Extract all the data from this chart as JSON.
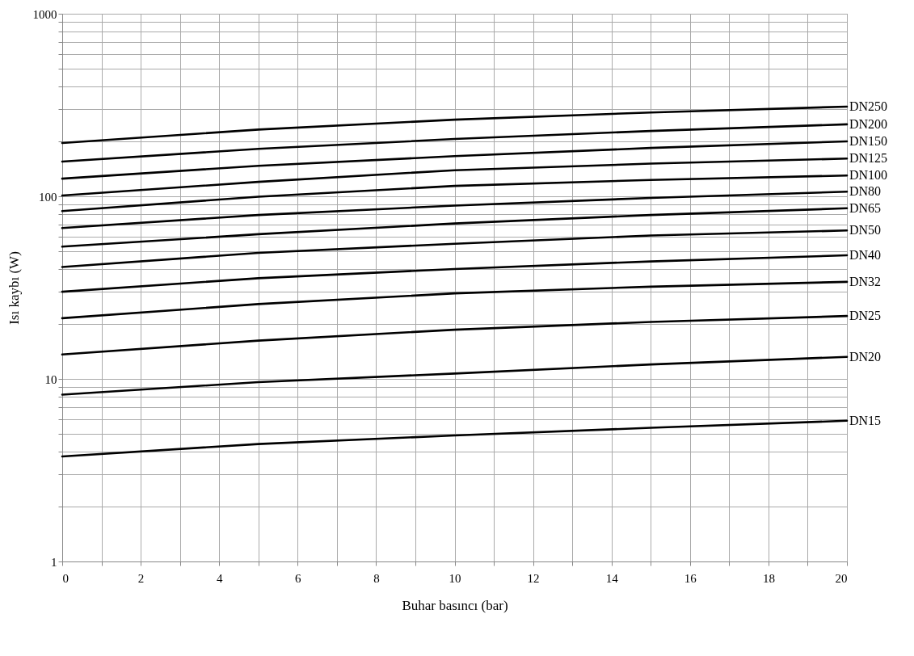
{
  "chart_data": {
    "type": "line",
    "xlabel": "Buhar basıncı (bar)",
    "ylabel": "Isı kaybı (W)",
    "x": [
      0,
      5,
      10,
      15,
      20
    ],
    "series": [
      {
        "name": "DN250",
        "color": "#000000",
        "values": [
          196,
          232,
          263,
          288,
          310
        ]
      },
      {
        "name": "DN200",
        "color": "#000000",
        "values": [
          155,
          182,
          206,
          228,
          248
        ]
      },
      {
        "name": "DN150",
        "color": "#000000",
        "values": [
          125,
          147,
          166,
          184,
          200
        ]
      },
      {
        "name": "DN125",
        "color": "#000000",
        "values": [
          101,
          120,
          139,
          151,
          161
        ]
      },
      {
        "name": "DN100",
        "color": "#000000",
        "values": [
          83,
          99.5,
          114,
          123,
          130
        ]
      },
      {
        "name": "DN80",
        "color": "#000000",
        "values": [
          67,
          79,
          89,
          98,
          106
        ]
      },
      {
        "name": "DN65",
        "color": "#000000",
        "values": [
          53,
          62,
          71,
          79,
          86
        ]
      },
      {
        "name": "DN50",
        "color": "#000000",
        "values": [
          41,
          49,
          55,
          61,
          65
        ]
      },
      {
        "name": "DN40",
        "color": "#000000",
        "values": [
          30,
          35.6,
          40,
          44,
          47.5
        ]
      },
      {
        "name": "DN32",
        "color": "#000000",
        "values": [
          21.5,
          25.7,
          29.4,
          32,
          34
        ]
      },
      {
        "name": "DN25",
        "color": "#000000",
        "values": [
          13.6,
          16.2,
          18.6,
          20.5,
          22.1
        ]
      },
      {
        "name": "DN20",
        "color": "#000000",
        "values": [
          8.2,
          9.6,
          10.7,
          12,
          13.2
        ]
      },
      {
        "name": "DN15",
        "color": "#000000",
        "values": [
          3.76,
          4.4,
          4.9,
          5.4,
          5.9
        ]
      }
    ],
    "xlim": [
      0,
      20
    ],
    "xticks": [
      0,
      {
        "value": 1,
        "label": null
      },
      2,
      {
        "value": 3,
        "label": null
      },
      4,
      {
        "value": 5,
        "label": null
      },
      6,
      {
        "value": 7,
        "label": null
      },
      8,
      {
        "value": 9,
        "label": null
      },
      10,
      {
        "value": 11,
        "label": null
      },
      12,
      {
        "value": 13,
        "label": null
      },
      14,
      {
        "value": 15,
        "label": null
      },
      16,
      {
        "value": 17,
        "label": null
      },
      18,
      {
        "value": 19,
        "label": null
      },
      20
    ],
    "ylim": [
      1,
      1000
    ],
    "yticks": [
      1,
      {
        "value": 2,
        "label": null
      },
      {
        "value": 3,
        "label": null
      },
      {
        "value": 4,
        "label": null
      },
      {
        "value": 5,
        "label": null
      },
      {
        "value": 6,
        "label": null
      },
      {
        "value": 7,
        "label": null
      },
      {
        "value": 8,
        "label": null
      },
      {
        "value": 9,
        "label": null
      },
      10,
      {
        "value": 20,
        "label": null
      },
      {
        "value": 30,
        "label": null
      },
      {
        "value": 40,
        "label": null
      },
      {
        "value": 50,
        "label": null
      },
      {
        "value": 60,
        "label": null
      },
      {
        "value": 70,
        "label": null
      },
      {
        "value": 80,
        "label": null
      },
      {
        "value": 90,
        "label": null
      },
      100,
      {
        "value": 200,
        "label": null
      },
      {
        "value": 300,
        "label": null
      },
      {
        "value": 400,
        "label": null
      },
      {
        "value": 500,
        "label": null
      },
      {
        "value": 600,
        "label": null
      },
      {
        "value": 700,
        "label": null
      },
      {
        "value": 800,
        "label": null
      },
      {
        "value": 900,
        "label": null
      },
      1000
    ],
    "log": true,
    "grid": true,
    "legend": false,
    "marker": "none",
    "line_style": "solid"
  }
}
